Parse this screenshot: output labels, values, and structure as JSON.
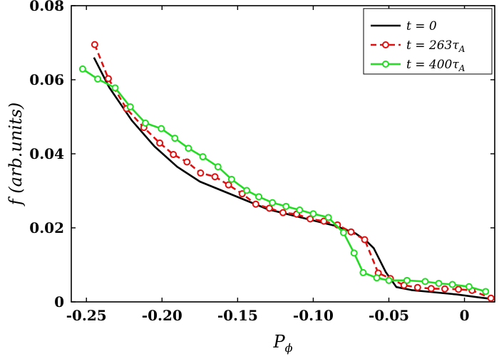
{
  "chart_data": {
    "type": "line",
    "xlabel": "P",
    "xlabel_sub": "ϕ",
    "ylabel": "f (arb.units)",
    "xlim": [
      -0.26,
      0.02
    ],
    "ylim": [
      0,
      0.08
    ],
    "x_ticks": [
      -0.25,
      -0.2,
      -0.15,
      -0.1,
      -0.05,
      0
    ],
    "x_tick_labels": [
      "-0.25",
      "-0.20",
      "-0.15",
      "-0.10",
      "-0.05",
      "0"
    ],
    "y_ticks": [
      0,
      0.02,
      0.04,
      0.06,
      0.08
    ],
    "y_tick_labels": [
      "0",
      "0.02",
      "0.04",
      "0.06",
      "0.08"
    ],
    "grid": false,
    "legend_position": "top-right",
    "series": [
      {
        "name": "t = 0",
        "color": "#000000",
        "style": "solid",
        "marker": "none",
        "x": [
          -0.245,
          -0.235,
          -0.22,
          -0.205,
          -0.19,
          -0.175,
          -0.16,
          -0.145,
          -0.13,
          -0.115,
          -0.1,
          -0.085,
          -0.072,
          -0.065,
          -0.06,
          -0.052,
          -0.045,
          -0.035,
          -0.02,
          -0.005,
          0.01,
          0.018
        ],
        "y": [
          0.066,
          0.058,
          0.049,
          0.042,
          0.0365,
          0.0325,
          0.03,
          0.0275,
          0.025,
          0.0235,
          0.022,
          0.0205,
          0.0185,
          0.0165,
          0.0145,
          0.008,
          0.004,
          0.0032,
          0.0026,
          0.002,
          0.0012,
          0.0008
        ]
      },
      {
        "name": "t = 263τ",
        "name_sub": "A",
        "color": "#e01010",
        "style": "dashed",
        "marker": "circle",
        "x": [
          -0.2445,
          -0.2355,
          -0.2235,
          -0.212,
          -0.2015,
          -0.1925,
          -0.1835,
          -0.1745,
          -0.165,
          -0.156,
          -0.147,
          -0.138,
          -0.129,
          -0.12,
          -0.111,
          -0.102,
          -0.093,
          -0.084,
          -0.075,
          -0.066,
          -0.057,
          -0.049,
          -0.04,
          -0.031,
          -0.022,
          -0.013,
          -0.004,
          0.005,
          0.0175
        ],
        "y": [
          0.0695,
          0.0603,
          0.0522,
          0.0471,
          0.0429,
          0.0398,
          0.0378,
          0.0348,
          0.0338,
          0.0316,
          0.0292,
          0.0264,
          0.0253,
          0.0241,
          0.0237,
          0.0224,
          0.0218,
          0.0208,
          0.0189,
          0.0168,
          0.0078,
          0.0063,
          0.0045,
          0.0039,
          0.0036,
          0.0035,
          0.0034,
          0.0031,
          0.001
        ]
      },
      {
        "name": "t = 400τ",
        "name_sub": "A",
        "color": "#22dd22",
        "style": "solid",
        "marker": "circle",
        "x": [
          -0.2525,
          -0.2425,
          -0.231,
          -0.221,
          -0.211,
          -0.2005,
          -0.1915,
          -0.1825,
          -0.173,
          -0.163,
          -0.154,
          -0.144,
          -0.136,
          -0.127,
          -0.118,
          -0.109,
          -0.1,
          -0.09,
          -0.08,
          -0.073,
          -0.067,
          -0.058,
          -0.05,
          -0.038,
          -0.026,
          -0.017,
          -0.008,
          0.003,
          0.014
        ],
        "y": [
          0.0629,
          0.0602,
          0.0578,
          0.0527,
          0.0483,
          0.0468,
          0.0442,
          0.0415,
          0.0392,
          0.0365,
          0.0331,
          0.0301,
          0.0284,
          0.0268,
          0.0258,
          0.0248,
          0.0238,
          0.0228,
          0.0187,
          0.0132,
          0.0079,
          0.0065,
          0.0058,
          0.0058,
          0.0055,
          0.005,
          0.0047,
          0.0041,
          0.0028
        ]
      }
    ]
  }
}
